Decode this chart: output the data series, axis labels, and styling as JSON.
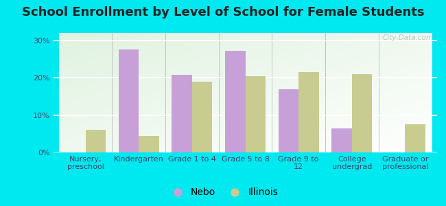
{
  "title": "School Enrollment by Level of School for Female Students",
  "categories": [
    "Nursery,\npreschool",
    "Kindergarten",
    "Grade 1 to 4",
    "Grade 5 to 8",
    "Grade 9 to\n12",
    "College\nundergrad",
    "Graduate or\nprofessional"
  ],
  "nebo_values": [
    0,
    27.5,
    20.8,
    27.3,
    17.0,
    6.5,
    0
  ],
  "illinois_values": [
    6.0,
    4.5,
    19.0,
    20.5,
    21.5,
    21.0,
    7.5
  ],
  "nebo_color": "#c8a0d8",
  "illinois_color": "#c8cc90",
  "background_outer": "#00e8f0",
  "ylabel_ticks": [
    "0%",
    "10%",
    "20%",
    "30%"
  ],
  "yticks": [
    0,
    10,
    20,
    30
  ],
  "ylim": [
    0,
    32
  ],
  "bar_width": 0.38,
  "legend_nebo": "Nebo",
  "legend_illinois": "Illinois",
  "title_fontsize": 13,
  "tick_fontsize": 8,
  "legend_fontsize": 10,
  "watermark": "City-Data.com"
}
